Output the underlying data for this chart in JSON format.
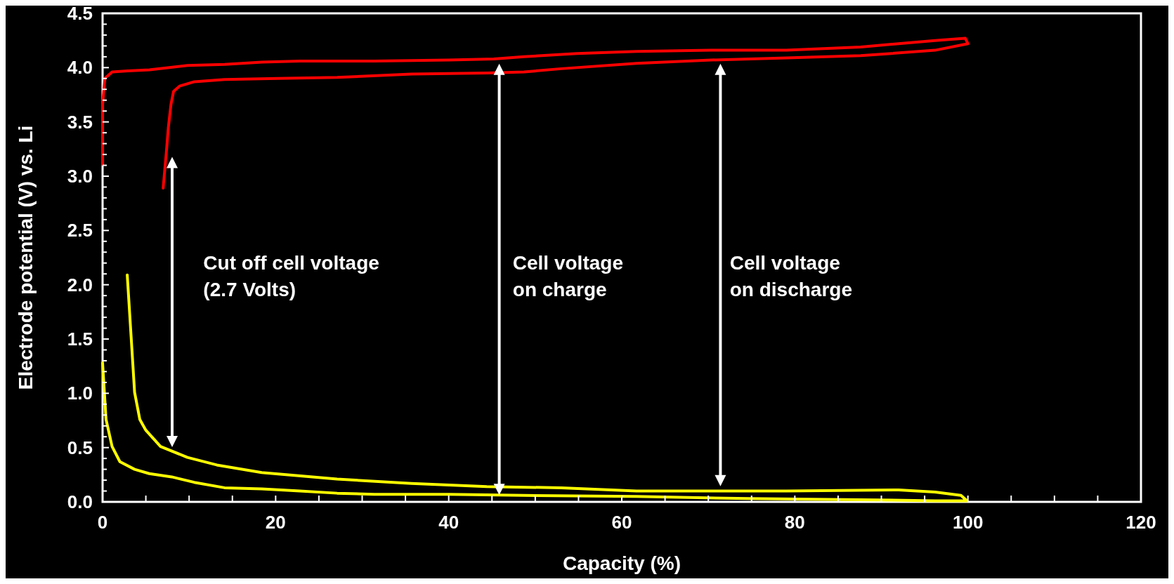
{
  "chart_data": {
    "type": "line",
    "xlabel": "Capacity (%)",
    "ylabel": "Electrode potential (V) vs. Li",
    "xlim": [
      0,
      120
    ],
    "xticks": [
      0,
      {
        "value": 5,
        "label": null
      },
      {
        "value": 10,
        "label": null
      },
      {
        "value": 15,
        "label": null
      },
      20,
      {
        "value": 25,
        "label": null
      },
      {
        "value": 30,
        "label": null
      },
      {
        "value": 35,
        "label": null
      },
      40,
      {
        "value": 45,
        "label": null
      },
      {
        "value": 50,
        "label": null
      },
      {
        "value": 55,
        "label": null
      },
      60,
      {
        "value": 65,
        "label": null
      },
      {
        "value": 70,
        "label": null
      },
      {
        "value": 75,
        "label": null
      },
      80,
      {
        "value": 85,
        "label": null
      },
      {
        "value": 90,
        "label": null
      },
      {
        "value": 95,
        "label": null
      },
      100,
      {
        "value": 105,
        "label": null
      },
      {
        "value": 110,
        "label": null
      },
      {
        "value": 115,
        "label": null
      },
      120
    ],
    "ylim": [
      0,
      4.5
    ],
    "yticks": [
      {
        "value": 0,
        "label": "0.0"
      },
      {
        "value": 0.1,
        "label": null
      },
      {
        "value": 0.2,
        "label": null
      },
      {
        "value": 0.3,
        "label": null
      },
      {
        "value": 0.4,
        "label": null
      },
      {
        "value": 0.5,
        "label": "0.5"
      },
      {
        "value": 0.6,
        "label": null
      },
      {
        "value": 0.7,
        "label": null
      },
      {
        "value": 0.8,
        "label": null
      },
      {
        "value": 0.9,
        "label": null
      },
      {
        "value": 1,
        "label": "1.0"
      },
      {
        "value": 1.1,
        "label": null
      },
      {
        "value": 1.2,
        "label": null
      },
      {
        "value": 1.3,
        "label": null
      },
      {
        "value": 1.4,
        "label": null
      },
      {
        "value": 1.5,
        "label": "1.5"
      },
      {
        "value": 1.6,
        "label": null
      },
      {
        "value": 1.7,
        "label": null
      },
      {
        "value": 1.8,
        "label": null
      },
      {
        "value": 1.9,
        "label": null
      },
      {
        "value": 2,
        "label": "2.0"
      },
      {
        "value": 2.1,
        "label": null
      },
      {
        "value": 2.2,
        "label": null
      },
      {
        "value": 2.3,
        "label": null
      },
      {
        "value": 2.4,
        "label": null
      },
      {
        "value": 2.5,
        "label": "2.5"
      },
      {
        "value": 2.6,
        "label": null
      },
      {
        "value": 2.7,
        "label": null
      },
      {
        "value": 2.8,
        "label": null
      },
      {
        "value": 2.9,
        "label": null
      },
      {
        "value": 3,
        "label": "3.0"
      },
      {
        "value": 3.1,
        "label": null
      },
      {
        "value": 3.2,
        "label": null
      },
      {
        "value": 3.3,
        "label": null
      },
      {
        "value": 3.4,
        "label": null
      },
      {
        "value": 3.5,
        "label": "3.5"
      },
      {
        "value": 3.6,
        "label": null
      },
      {
        "value": 3.7,
        "label": null
      },
      {
        "value": 3.8,
        "label": null
      },
      {
        "value": 3.9,
        "label": null
      },
      {
        "value": 4,
        "label": "4.0"
      },
      {
        "value": 4.1,
        "label": null
      },
      {
        "value": 4.2,
        "label": null
      },
      {
        "value": 4.3,
        "label": null
      },
      {
        "value": 4.4,
        "label": null
      },
      {
        "value": 4.5,
        "label": "4.5"
      }
    ],
    "grid": false,
    "marker": "none",
    "line_style": "solid",
    "series": [
      {
        "color": "#ff0000",
        "x": [
          0,
          0,
          0.26,
          1.1,
          2.9,
          5.4,
          9.8,
          14.1,
          18.4,
          22.8,
          31.4,
          40,
          45.2,
          48.7,
          54.8,
          61.7,
          70.3,
          79,
          87.6,
          96.2,
          99.7,
          100,
          96.2,
          87.6,
          79,
          70.3,
          61.7,
          53,
          48.7,
          44.4,
          35.7,
          27.1,
          20.2,
          14.1,
          10.6,
          8.9,
          8.2,
          7.9,
          7.6,
          7.4,
          7.0
        ],
        "values": [
          3.11,
          3.66,
          3.9,
          3.96,
          3.97,
          3.98,
          4.02,
          4.03,
          4.05,
          4.06,
          4.06,
          4.07,
          4.08,
          4.1,
          4.13,
          4.15,
          4.16,
          4.16,
          4.19,
          4.25,
          4.27,
          4.22,
          4.16,
          4.11,
          4.09,
          4.07,
          4.04,
          3.99,
          3.96,
          3.95,
          3.94,
          3.91,
          3.9,
          3.89,
          3.87,
          3.83,
          3.78,
          3.66,
          3.45,
          3.25,
          2.89
        ]
      },
      {
        "color": "#ffff00",
        "x": [
          2.85,
          3.3,
          3.7,
          4.3,
          5,
          6.7,
          9.8,
          13.2,
          18.4,
          27.1,
          35.7,
          44.4,
          53,
          61.7,
          70.3,
          79,
          92,
          96.2,
          99.2,
          99.9,
          96.2,
          87.6,
          74.7,
          61.7,
          48.7,
          40,
          31.4,
          27.1,
          22.8,
          18.4,
          14.1,
          10.6,
          8,
          5.4,
          3.7,
          2,
          1.1,
          0.4,
          0
        ],
        "values": [
          2.09,
          1.52,
          1.01,
          0.76,
          0.66,
          0.51,
          0.41,
          0.34,
          0.27,
          0.21,
          0.17,
          0.14,
          0.13,
          0.1,
          0.1,
          0.1,
          0.11,
          0.09,
          0.06,
          0.01,
          0.01,
          0.02,
          0.03,
          0.05,
          0.06,
          0.07,
          0.07,
          0.08,
          0.1,
          0.12,
          0.13,
          0.18,
          0.23,
          0.26,
          0.3,
          0.37,
          0.51,
          0.76,
          1.28
        ]
      }
    ],
    "annotations": [
      "Cut off cell voltage\n(2.7 Volts)",
      "Cell voltage\non charge",
      "Cell voltage\non discharge"
    ]
  }
}
